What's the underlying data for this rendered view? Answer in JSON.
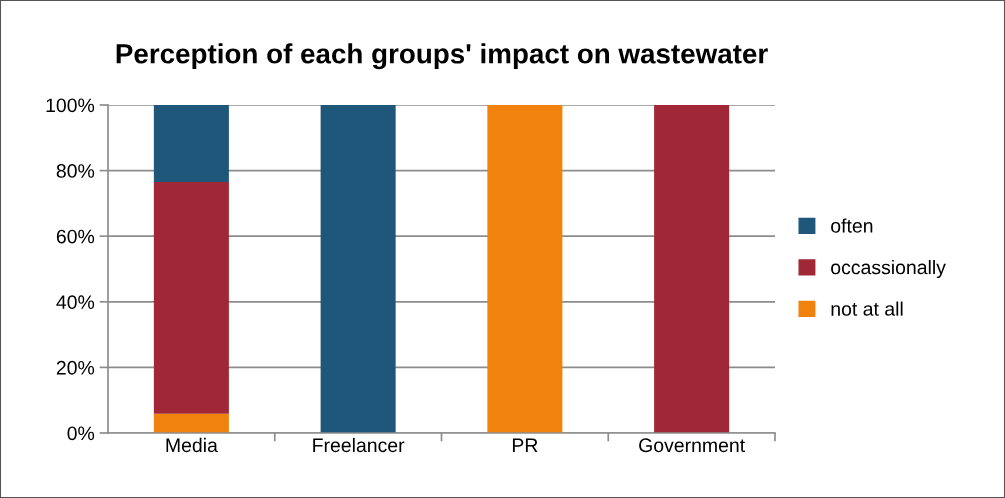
{
  "chart_data": {
    "type": "bar",
    "title": "Perception of each groups' impact on wastewater",
    "categories": [
      "Media",
      "Freelancer",
      "PR",
      "Government"
    ],
    "stacked": true,
    "series": [
      {
        "name": "not at all",
        "color": "#f0820d",
        "values": [
          5.9,
          0,
          100,
          0
        ]
      },
      {
        "name": "occassionally",
        "color": "#a02836",
        "values": [
          70.6,
          0,
          0,
          100
        ]
      },
      {
        "name": "often",
        "color": "#1e5779",
        "values": [
          23.5,
          100,
          0,
          0
        ]
      }
    ],
    "ylim": [
      0,
      100
    ],
    "yticks": [
      {
        "value": 0,
        "label": "0%"
      },
      {
        "value": 20,
        "label": "20%"
      },
      {
        "value": 40,
        "label": "40%"
      },
      {
        "value": 60,
        "label": "60%"
      },
      {
        "value": 80,
        "label": "80%"
      },
      {
        "value": 100,
        "label": "100%"
      }
    ],
    "grid": "y",
    "legend": "right"
  }
}
